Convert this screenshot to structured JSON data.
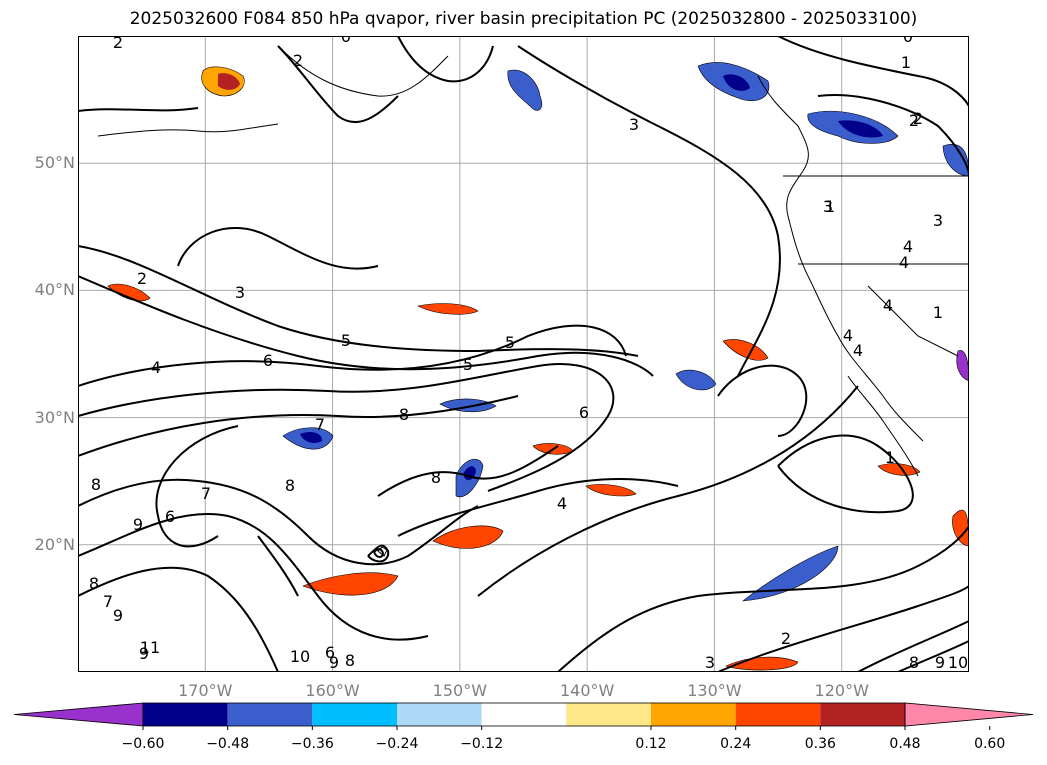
{
  "title": "2025032600 F084 850 hPa qvapor, river basin precipitation PC (2025032800 - 2025033100)",
  "map": {
    "lat_labels": [
      {
        "lat": 50,
        "text": "50°N"
      },
      {
        "lat": 40,
        "text": "40°N"
      },
      {
        "lat": 30,
        "text": "30°N"
      },
      {
        "lat": 20,
        "text": "20°N"
      }
    ],
    "lon_labels": [
      {
        "lon": -170,
        "text": "170°W"
      },
      {
        "lon": -160,
        "text": "160°W"
      },
      {
        "lon": -150,
        "text": "150°W"
      },
      {
        "lon": -140,
        "text": "140°W"
      },
      {
        "lon": -130,
        "text": "130°W"
      },
      {
        "lon": -120,
        "text": "120°W"
      }
    ],
    "lon_range": [
      -180,
      -110
    ],
    "lat_range": [
      10,
      60
    ],
    "gridlines": true,
    "contour_labels": [
      "2",
      "2",
      "0",
      "0",
      "1",
      "2",
      "3",
      "3",
      "1",
      "2",
      "3",
      "5",
      "5",
      "4",
      "6",
      "5",
      "8",
      "7",
      "8",
      "6",
      "4",
      "8",
      "8",
      "7",
      "6",
      "9",
      "8",
      "7",
      "9",
      "9",
      "11",
      "10",
      "6",
      "8",
      "9",
      "2",
      "3",
      "8",
      "9",
      "10",
      "1",
      "1",
      "4",
      "4",
      "3",
      "4",
      "4",
      "4",
      "2"
    ],
    "contour_color": "#000000",
    "land_outline_color": "#000000"
  },
  "colorbar": {
    "ticks": [
      "-0.60",
      "-0.48",
      "-0.36",
      "-0.24",
      "-0.12",
      "0.12",
      "0.24",
      "0.36",
      "0.48",
      "0.60"
    ],
    "colors": [
      "#9932CC",
      "#00008B",
      "#3A5FCD",
      "#00BFFF",
      "#ADD8F6",
      "#FFFFFF",
      "#FFE88A",
      "#FFA500",
      "#FF4500",
      "#B22222",
      "#FF88AA"
    ]
  }
}
